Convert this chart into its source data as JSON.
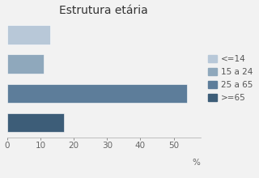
{
  "title": "Estrutura etária",
  "categories": [
    "<=14",
    "15 a 24",
    "25 a 65",
    ">=65"
  ],
  "values": [
    13,
    11,
    54,
    17
  ],
  "colors": [
    "#b8c8d8",
    "#8fa8bc",
    "#5d7d9a",
    "#3d5d78"
  ],
  "xlabel": "%",
  "xlim": [
    0,
    58
  ],
  "xticks": [
    0,
    10,
    20,
    30,
    40,
    50
  ],
  "background_color": "#f2f2f2",
  "title_fontsize": 10,
  "tick_fontsize": 7.5,
  "legend_fontsize": 7.5
}
